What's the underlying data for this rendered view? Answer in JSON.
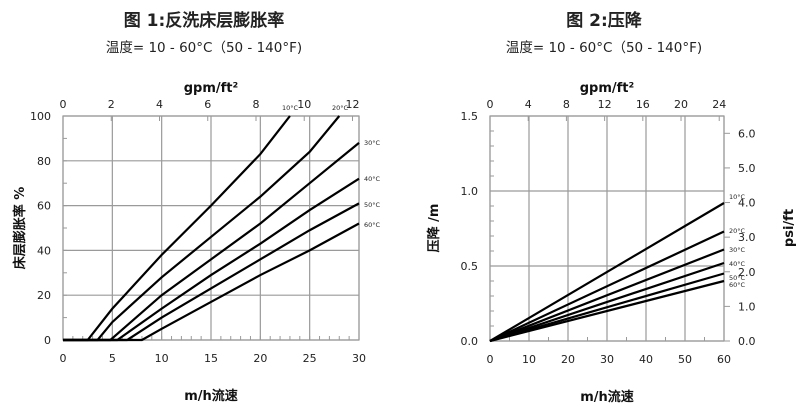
{
  "chart1": {
    "title": "图 1:反洗床层膨胀率",
    "subtitle": "温度= 10 - 60°C（50 - 140°F)",
    "top_axis_label": "gpm/ft²",
    "xlabel": "m/h流速",
    "ylabel": "床层膨胀率 %"
  },
  "chart2": {
    "title": "图 2:压降",
    "subtitle": "温度= 10 - 60°C（50 - 140°F)",
    "top_axis_label": "gpm/ft²",
    "xlabel": "m/h流速",
    "ylabel": "压降 /m",
    "ylabel_right": "psi/ft"
  },
  "chart_data": [
    {
      "type": "line",
      "title": "图 1:反洗床层膨胀率",
      "subtitle": "温度= 10 - 60°C（50 - 140°F)",
      "xlabel": "m/h流速",
      "ylabel": "床层膨胀率 %",
      "x2label": "gpm/ft²",
      "xlim": [
        0,
        30
      ],
      "ylim": [
        0,
        100
      ],
      "x2lim": [
        0,
        12.27
      ],
      "xticks": [
        0,
        5,
        10,
        15,
        20,
        25,
        30
      ],
      "yticks": [
        0,
        20,
        40,
        60,
        80,
        100
      ],
      "x2ticks": [
        0,
        2,
        4,
        6,
        8,
        10,
        12
      ],
      "grid": true,
      "legend_position": "inline labels at line ends",
      "series": [
        {
          "name": "10°C",
          "x": [
            0,
            2.5,
            5,
            10,
            15,
            20,
            23
          ],
          "y": [
            0,
            0,
            14,
            38,
            60,
            83,
            100
          ]
        },
        {
          "name": "20°C",
          "x": [
            0,
            3.5,
            5,
            10,
            15,
            20,
            25,
            28
          ],
          "y": [
            0,
            0,
            8,
            28,
            46,
            64,
            84,
            100
          ]
        },
        {
          "name": "30°C",
          "x": [
            0,
            4.8,
            10,
            15,
            20,
            25,
            30
          ],
          "y": [
            0,
            0,
            20,
            36,
            52,
            70,
            88
          ]
        },
        {
          "name": "40°C",
          "x": [
            0,
            5.5,
            10,
            15,
            20,
            25,
            30
          ],
          "y": [
            0,
            0,
            14,
            29,
            43,
            58,
            72
          ]
        },
        {
          "name": "50°C",
          "x": [
            0,
            6.5,
            10,
            15,
            20,
            25,
            30
          ],
          "y": [
            0,
            0,
            10,
            23,
            36,
            49,
            61
          ]
        },
        {
          "name": "60°C",
          "x": [
            0,
            8,
            10,
            15,
            20,
            25,
            30
          ],
          "y": [
            0,
            0,
            5,
            17,
            29,
            40,
            52
          ]
        }
      ]
    },
    {
      "type": "line",
      "title": "图 2:压降",
      "subtitle": "温度= 10 - 60°C（50 - 140°F)",
      "xlabel": "m/h流速",
      "ylabel": "压降 /m",
      "y2label": "psi/ft",
      "x2label": "gpm/ft²",
      "xlim": [
        0,
        60
      ],
      "ylim": [
        0,
        1.5
      ],
      "x2lim": [
        0,
        24.5
      ],
      "y2lim": [
        0,
        6.5
      ],
      "xticks": [
        0,
        10,
        20,
        30,
        40,
        50,
        60
      ],
      "yticks": [
        0.0,
        0.5,
        1.0,
        1.5
      ],
      "x2ticks": [
        0,
        4,
        8,
        12,
        16,
        20,
        24
      ],
      "y2ticks": [
        0.0,
        1.0,
        2.0,
        3.0,
        4.0,
        5.0,
        6.0
      ],
      "grid": true,
      "legend_position": "inline labels at right end",
      "series": [
        {
          "name": "10°C",
          "x": [
            0,
            60
          ],
          "y": [
            0,
            0.92
          ]
        },
        {
          "name": "20°C",
          "x": [
            0,
            60
          ],
          "y": [
            0,
            0.73
          ]
        },
        {
          "name": "30°C",
          "x": [
            0,
            60
          ],
          "y": [
            0,
            0.61
          ]
        },
        {
          "name": "40°C",
          "x": [
            0,
            60
          ],
          "y": [
            0,
            0.52
          ]
        },
        {
          "name": "50°C",
          "x": [
            0,
            60
          ],
          "y": [
            0,
            0.45
          ]
        },
        {
          "name": "60°C",
          "x": [
            0,
            60
          ],
          "y": [
            0,
            0.4
          ]
        }
      ]
    }
  ]
}
